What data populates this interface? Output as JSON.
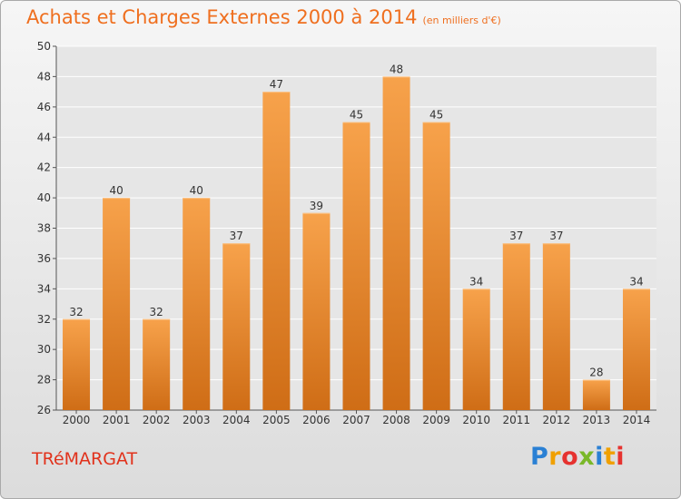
{
  "title": "Achats et Charges Externes 2000 à 2014",
  "unit_note": "(en milliers d'€)",
  "commune": "TRéMARGAT",
  "logo": {
    "text": "Proxiti",
    "colors": [
      "#2a80d4",
      "#f0a000",
      "#e6322f",
      "#7ab829"
    ]
  },
  "colors": {
    "bar_light": "#f7a24b",
    "bar_dark": "#cf6d16",
    "title": "#ef6f1f",
    "commune": "#e1321c",
    "grid": "#ffffff",
    "plot_bg": "#e6e6e6"
  },
  "chart_data": {
    "type": "bar",
    "title": "Achats et Charges Externes 2000 à 2014",
    "subtitle": "(en milliers d'€)",
    "categories": [
      "2000",
      "2001",
      "2002",
      "2003",
      "2004",
      "2005",
      "2006",
      "2007",
      "2008",
      "2009",
      "2010",
      "2011",
      "2012",
      "2013",
      "2014"
    ],
    "values": [
      32,
      40,
      32,
      40,
      37,
      47,
      39,
      45,
      48,
      45,
      34,
      37,
      37,
      28,
      34
    ],
    "ylim": [
      26,
      50
    ],
    "yticks": [
      26,
      28,
      30,
      32,
      34,
      36,
      38,
      40,
      42,
      44,
      46,
      48,
      50
    ],
    "grid": true,
    "data_labels": true
  }
}
